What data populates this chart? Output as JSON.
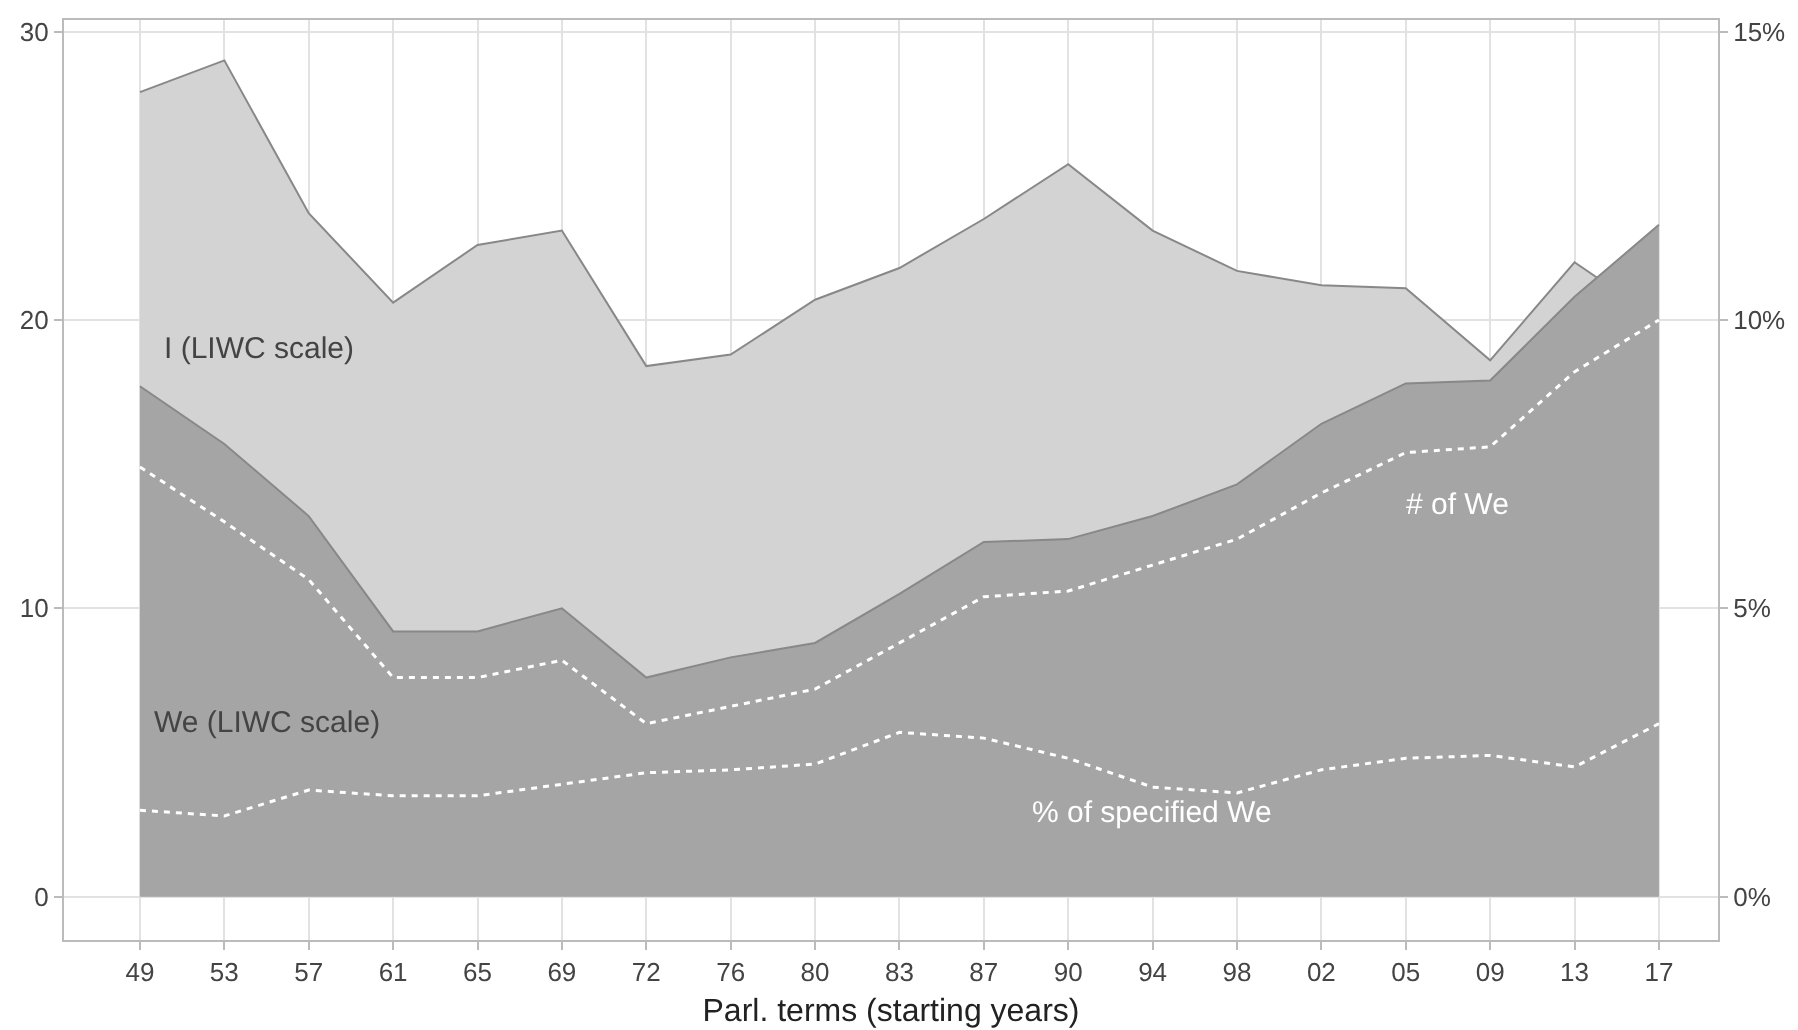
{
  "chart_data": {
    "type": "area",
    "xlabel": "Parl. terms (starting years)",
    "categories": [
      "49",
      "53",
      "57",
      "61",
      "65",
      "69",
      "72",
      "76",
      "80",
      "83",
      "87",
      "90",
      "94",
      "98",
      "02",
      "05",
      "09",
      "13",
      "17"
    ],
    "series": [
      {
        "name": "I (LIWC scale)",
        "color": "#d3d3d3",
        "values": [
          27.9,
          29.0,
          23.7,
          20.6,
          22.6,
          23.1,
          18.4,
          18.8,
          20.7,
          21.8,
          23.5,
          25.4,
          23.1,
          21.7,
          21.2,
          21.1,
          18.6,
          22.0,
          20.0
        ]
      },
      {
        "name": "We (LIWC scale)",
        "color": "#a5a5a5",
        "values": [
          17.7,
          15.7,
          13.2,
          9.2,
          9.2,
          10.0,
          7.6,
          8.3,
          8.8,
          10.5,
          12.3,
          12.4,
          13.2,
          14.3,
          16.4,
          17.8,
          17.9,
          20.8,
          23.3
        ]
      },
      {
        "name": "# of We",
        "type": "line",
        "axis": "y2",
        "color": "#ffffff",
        "line_style": "dotted",
        "values": [
          7.45,
          6.5,
          5.5,
          3.8,
          3.8,
          4.1,
          3.0,
          3.3,
          3.6,
          4.4,
          5.2,
          5.3,
          5.75,
          6.2,
          7.0,
          7.7,
          7.8,
          9.1,
          10.0
        ]
      },
      {
        "name": "% of specified We",
        "type": "line",
        "axis": "y2",
        "color": "#ffffff",
        "line_style": "dotted",
        "values": [
          1.5,
          1.4,
          1.85,
          1.75,
          1.75,
          1.95,
          2.15,
          2.2,
          2.3,
          2.85,
          2.75,
          2.4,
          1.9,
          1.8,
          2.2,
          2.4,
          2.45,
          2.25,
          3.0
        ]
      }
    ],
    "ylim": [
      -1.5,
      30.4
    ],
    "yticks": [
      0,
      10,
      20,
      30
    ],
    "y2lim": [
      -0.75,
      15.2
    ],
    "y2ticks": [
      {
        "value": 0,
        "label": "0%"
      },
      {
        "value": 5,
        "label": "5%"
      },
      {
        "value": 10,
        "label": "10%"
      },
      {
        "value": 15,
        "label": "15%"
      }
    ],
    "grid": true
  }
}
